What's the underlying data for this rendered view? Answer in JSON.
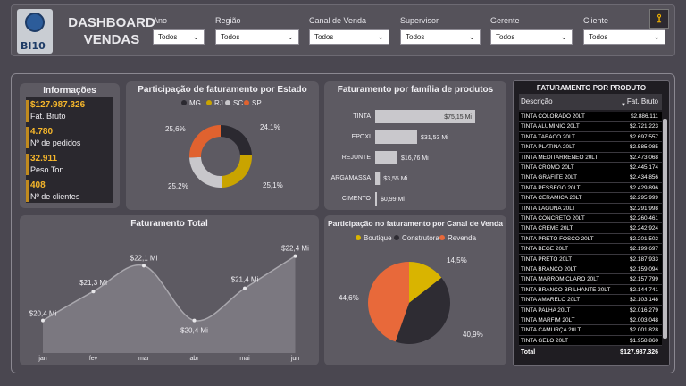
{
  "header": {
    "logo_text": "BI10",
    "title_line1": "DASHBOARD",
    "title_line2": "VENDAS",
    "filters": [
      {
        "label": "Ano",
        "value": "Todos"
      },
      {
        "label": "Região",
        "value": "Todos"
      },
      {
        "label": "Canal de Venda",
        "value": "Todos"
      },
      {
        "label": "Supervisor",
        "value": "Todos"
      },
      {
        "label": "Gerente",
        "value": "Todos"
      },
      {
        "label": "Cliente",
        "value": "Todos"
      }
    ]
  },
  "info": {
    "title": "Informações",
    "kpis": [
      {
        "value": "$127.987.326",
        "label": "Fat. Bruto"
      },
      {
        "value": "4.780",
        "label": "Nº de pedidos"
      },
      {
        "value": "32.911",
        "label": "Peso Ton."
      },
      {
        "value": "408",
        "label": "Nº de clientes"
      }
    ]
  },
  "state_chart": {
    "title": "Participação de faturamento por Estado",
    "legend": [
      "MG",
      "RJ",
      "SC",
      "SP"
    ],
    "labels": [
      "24,1%",
      "25,1%",
      "25,2%",
      "25,6%"
    ]
  },
  "family_chart": {
    "title": "Faturamento por família de produtos",
    "labels": [
      "$75,15 Mi",
      "$31,53 Mi",
      "$16,76 Mi",
      "$3,55 Mi",
      "$0,99 Mi"
    ]
  },
  "total_chart": {
    "title": "Faturamento Total",
    "labels": [
      "$20,4 Mi",
      "$21,3 Mi",
      "$22,1 Mi",
      "$20,4 Mi",
      "$21,4 Mi",
      "$22,4 Mi"
    ]
  },
  "channel_chart": {
    "title": "Participação no faturamento por Canal de Venda",
    "legend": [
      "Boutique",
      "Construtora",
      "Revenda"
    ],
    "labels": [
      "14,5%",
      "40,9%",
      "44,6%"
    ]
  },
  "products": {
    "title": "FATURAMENTO POR PRODUTO",
    "col_desc": "Descrição",
    "col_value": "Fat. Bruto",
    "rows": [
      [
        "TINTA COLORADO 20LT",
        "$2.886.111"
      ],
      [
        "TINTA ALUMINIO 20LT",
        "$2.721.223"
      ],
      [
        "TINTA TABACO 20LT",
        "$2.697.557"
      ],
      [
        "TINTA PLATINA 20LT",
        "$2.585.085"
      ],
      [
        "TINTA MEDITARRENEO 20LT",
        "$2.473.068"
      ],
      [
        "TINTA CROMO 20LT",
        "$2.445.174"
      ],
      [
        "TINTA GRAFITE 20LT",
        "$2.434.856"
      ],
      [
        "TINTA PESSEGO 20LT",
        "$2.429.896"
      ],
      [
        "TINTA CERAMICA 20LT",
        "$2.295.999"
      ],
      [
        "TINTA LAGUNA 20LT",
        "$2.291.998"
      ],
      [
        "TINTA CONCRETO 20LT",
        "$2.260.461"
      ],
      [
        "TINTA CREME 20LT",
        "$2.242.924"
      ],
      [
        "TINTA PRETO FOSCO 20LT",
        "$2.201.502"
      ],
      [
        "TINTA BEGE 20LT",
        "$2.199.697"
      ],
      [
        "TINTA PRETO 20LT",
        "$2.187.933"
      ],
      [
        "TINTA BRANCO 20LT",
        "$2.159.094"
      ],
      [
        "TINTA MARROM CLARO 20LT",
        "$2.157.799"
      ],
      [
        "TINTA BRANCO BRILHANTE 20LT",
        "$2.144.741"
      ],
      [
        "TINTA AMARELO 20LT",
        "$2.103.148"
      ],
      [
        "TINTA PALHA 20LT",
        "$2.016.279"
      ],
      [
        "TINTA MARFIM 20LT",
        "$2.003.048"
      ],
      [
        "TINTA CAMURÇA 20LT",
        "$2.001.828"
      ],
      [
        "TINTA GELO 20LT",
        "$1.958.860"
      ]
    ],
    "total_label": "Total",
    "total_value": "$127.987.326"
  },
  "colors": {
    "MG": "#2b2930",
    "RJ": "#c9a400",
    "SC": "#c8c7cb",
    "SP": "#e0622f",
    "Boutique": "#d9b400",
    "Construtora": "#2e2c33",
    "Revenda": "#e8693a",
    "accent": "#f5b62b"
  },
  "chart_data": [
    {
      "type": "pie",
      "title": "Participação de faturamento por Estado",
      "categories": [
        "MG",
        "RJ",
        "SC",
        "SP"
      ],
      "values": [
        24.1,
        25.1,
        25.2,
        25.6
      ],
      "legend": "top"
    },
    {
      "type": "bar",
      "title": "Faturamento por família de produtos",
      "categories": [
        "TINTA",
        "EPOXI",
        "REJUNTE",
        "ARGAMASSA",
        "CIMENTO"
      ],
      "values": [
        75.15,
        31.53,
        16.76,
        3.55,
        0.99
      ]
    },
    {
      "type": "area",
      "title": "Faturamento Total",
      "categories": [
        "jan",
        "fev",
        "mar",
        "abr",
        "mai",
        "jun"
      ],
      "values": [
        20.4,
        21.3,
        22.1,
        20.4,
        21.4,
        22.4
      ]
    },
    {
      "type": "pie",
      "title": "Participação no faturamento por Canal de Venda",
      "categories": [
        "Boutique",
        "Construtora",
        "Revenda"
      ],
      "values": [
        14.5,
        40.9,
        44.6
      ],
      "legend": "top"
    }
  ]
}
